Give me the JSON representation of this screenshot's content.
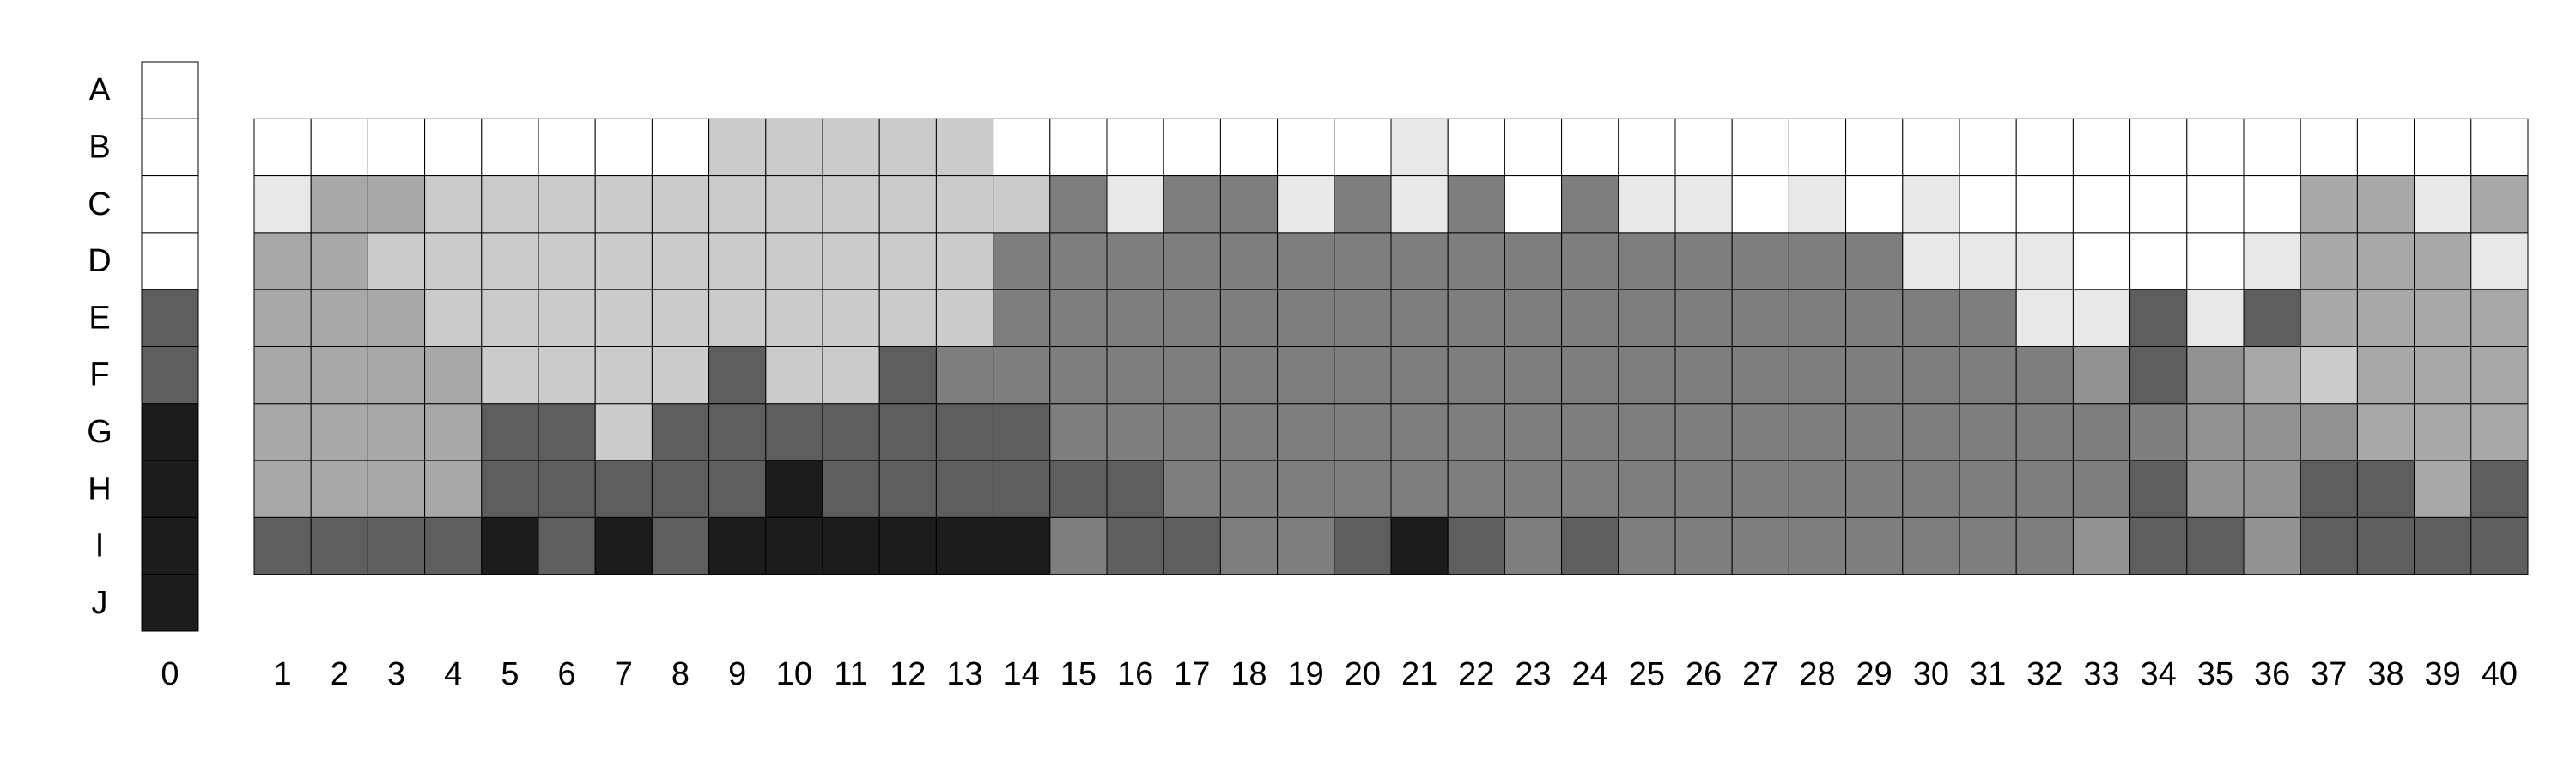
{
  "chart_data": {
    "type": "heatmap",
    "title": "",
    "xlabel": "",
    "ylabel": "",
    "rows": [
      "A",
      "B",
      "C",
      "D",
      "E",
      "F",
      "G",
      "H",
      "I",
      "J"
    ],
    "reference_column": {
      "label": "0",
      "values": [
        0,
        0,
        0,
        0,
        6,
        6,
        9,
        9,
        9,
        9
      ]
    },
    "columns": [
      "1",
      "2",
      "3",
      "4",
      "5",
      "6",
      "7",
      "8",
      "9",
      "10",
      "11",
      "12",
      "13",
      "14",
      "15",
      "16",
      "17",
      "18",
      "19",
      "20",
      "21",
      "22",
      "23",
      "24",
      "25",
      "26",
      "27",
      "28",
      "29",
      "30",
      "31",
      "32",
      "33",
      "34",
      "35",
      "36",
      "37",
      "38",
      "39",
      "40"
    ],
    "matrix_rows": [
      "B",
      "C",
      "D",
      "E",
      "F",
      "G",
      "H",
      "I"
    ],
    "matrix": [
      [
        0,
        0,
        0,
        0,
        0,
        0,
        0,
        0,
        2,
        2,
        2,
        2,
        2,
        0,
        0,
        0,
        0,
        0,
        0,
        0,
        1,
        0,
        0,
        0,
        0,
        0,
        0,
        0,
        0,
        0,
        0,
        0,
        0,
        0,
        0,
        0,
        0,
        0,
        0,
        0
      ],
      [
        1,
        3,
        3,
        2,
        2,
        2,
        2,
        2,
        2,
        2,
        2,
        2,
        2,
        2,
        5,
        1,
        5,
        5,
        1,
        5,
        1,
        5,
        0,
        5,
        1,
        1,
        0,
        1,
        0,
        1,
        0,
        0,
        0,
        0,
        0,
        0,
        3,
        3,
        1,
        3
      ],
      [
        3,
        3,
        2,
        2,
        2,
        2,
        2,
        2,
        2,
        2,
        2,
        2,
        2,
        5,
        5,
        5,
        5,
        5,
        5,
        5,
        5,
        5,
        5,
        5,
        5,
        5,
        5,
        5,
        5,
        1,
        1,
        1,
        0,
        0,
        0,
        1,
        3,
        3,
        3,
        1
      ],
      [
        3,
        3,
        3,
        2,
        2,
        2,
        2,
        2,
        2,
        2,
        2,
        2,
        2,
        5,
        5,
        5,
        5,
        5,
        5,
        5,
        5,
        5,
        5,
        5,
        5,
        5,
        5,
        5,
        5,
        5,
        5,
        1,
        1,
        6,
        1,
        6,
        3,
        3,
        3,
        3
      ],
      [
        3,
        3,
        3,
        3,
        2,
        2,
        2,
        2,
        6,
        2,
        2,
        6,
        5,
        5,
        5,
        5,
        5,
        5,
        5,
        5,
        5,
        5,
        5,
        5,
        5,
        5,
        5,
        5,
        5,
        5,
        5,
        5,
        4,
        6,
        4,
        3,
        2,
        3,
        3,
        3
      ],
      [
        3,
        3,
        3,
        3,
        6,
        6,
        2,
        6,
        6,
        6,
        6,
        6,
        6,
        6,
        5,
        5,
        5,
        5,
        5,
        5,
        5,
        5,
        5,
        5,
        5,
        5,
        5,
        5,
        5,
        5,
        5,
        5,
        5,
        5,
        4,
        4,
        4,
        3,
        3,
        3
      ],
      [
        3,
        3,
        3,
        3,
        6,
        6,
        6,
        6,
        6,
        9,
        6,
        6,
        6,
        6,
        6,
        6,
        5,
        5,
        5,
        5,
        5,
        5,
        5,
        5,
        5,
        5,
        5,
        5,
        5,
        5,
        5,
        5,
        5,
        6,
        4,
        4,
        6,
        6,
        3,
        6
      ],
      [
        6,
        6,
        6,
        6,
        9,
        6,
        9,
        6,
        9,
        9,
        9,
        9,
        9,
        9,
        5,
        6,
        6,
        5,
        5,
        6,
        9,
        6,
        5,
        6,
        5,
        5,
        5,
        5,
        5,
        5,
        5,
        5,
        4,
        6,
        6,
        4,
        6,
        6,
        6,
        6
      ]
    ],
    "levels": [
      0,
      1,
      2,
      3,
      4,
      5,
      6,
      9
    ],
    "level_colors": {
      "0": "#ffffff",
      "1": "#e8e8e8",
      "2": "#cbcbcb",
      "3": "#a8a8a8",
      "4": "#929292",
      "5": "#7e7e7e",
      "6": "#5e5e5e",
      "9": "#1c1c1c"
    },
    "grid": true,
    "legend": "none"
  }
}
